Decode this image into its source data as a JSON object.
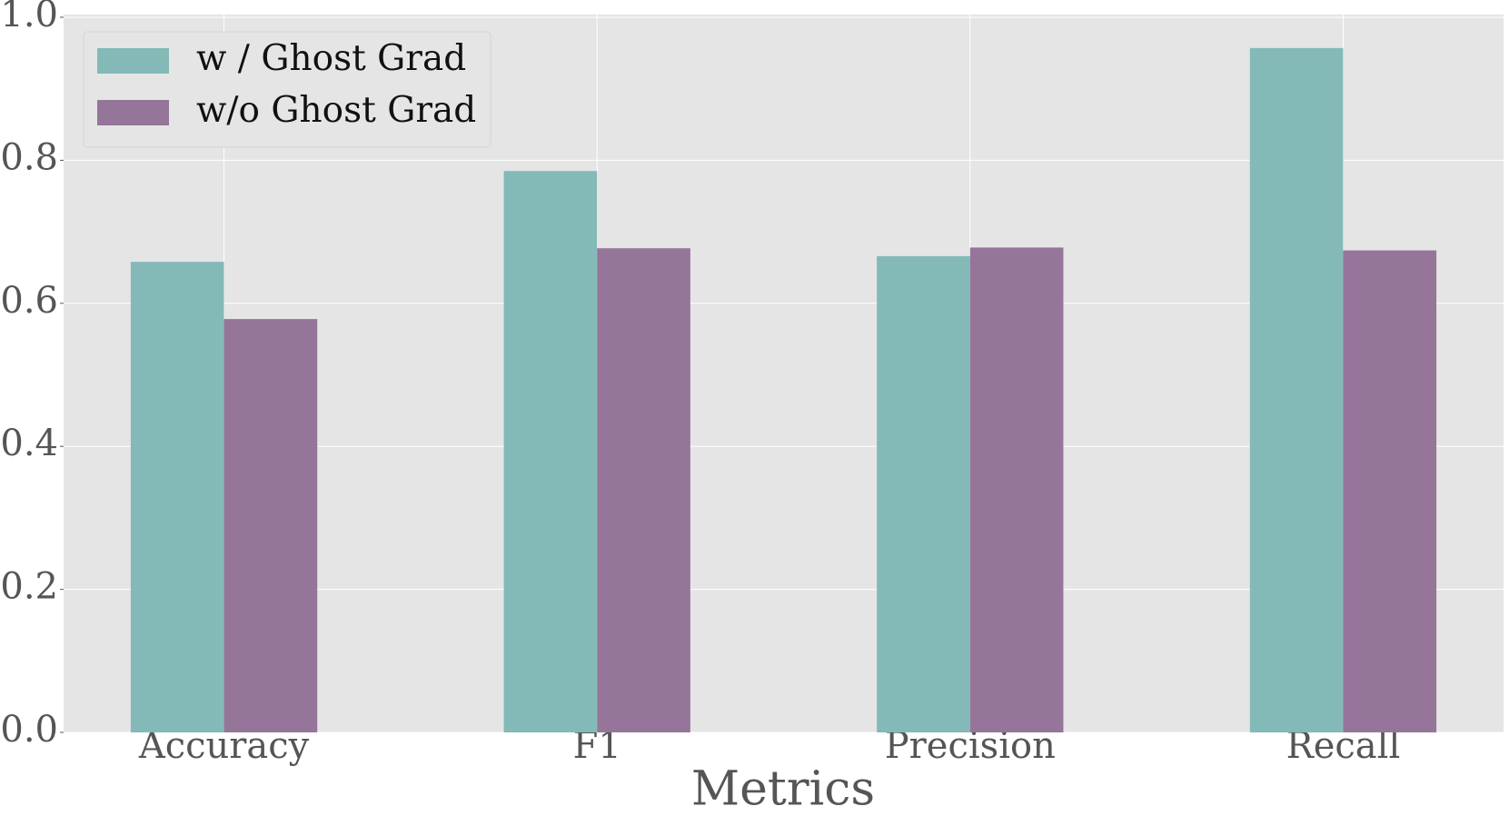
{
  "chart_data": {
    "type": "bar",
    "x_label": "Metrics",
    "categories": [
      "Accuracy",
      "F1",
      "Precision",
      "Recall"
    ],
    "series": [
      {
        "name": "w / Ghost Grad",
        "color": "#83bab7",
        "values": [
          0.658,
          0.785,
          0.666,
          0.957
        ]
      },
      {
        "name": "w/o Ghost Grad",
        "color": "#96759b",
        "values": [
          0.578,
          0.677,
          0.678,
          0.674
        ]
      }
    ],
    "ylim": [
      0,
      1
    ],
    "yticks": [
      {
        "value": 0,
        "label": "0.0"
      },
      0.2,
      0.4,
      0.6,
      0.8,
      {
        "value": 1,
        "label": "1.0"
      }
    ],
    "grid": true,
    "legend": "upper left"
  }
}
